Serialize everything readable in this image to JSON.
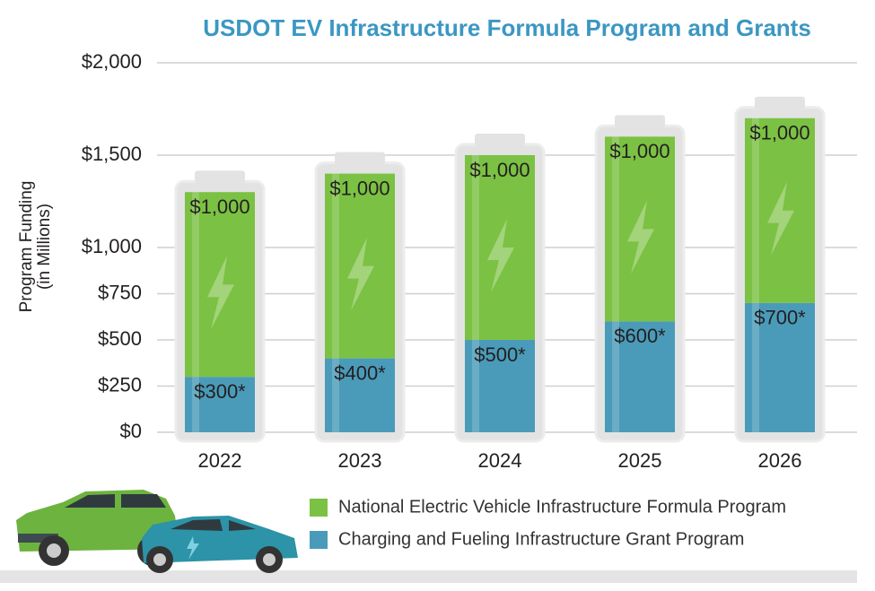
{
  "chart_data": {
    "type": "bar",
    "stacked": true,
    "title": "USDOT EV Infrastructure Formula Program and Grants",
    "ylabel": [
      "Program Funding",
      "(in Millions)"
    ],
    "categories": [
      "2022",
      "2023",
      "2024",
      "2025",
      "2026"
    ],
    "series": [
      {
        "name": "Charging and Fueling Infrastructure Grant Program",
        "color": "#4a9bb9",
        "values": [
          300,
          400,
          500,
          600,
          700
        ],
        "value_labels": [
          "$300*",
          "$400*",
          "$500*",
          "$600*",
          "$700*"
        ]
      },
      {
        "name": "National Electric Vehicle Infrastructure Formula Program",
        "color": "#7bc143",
        "values": [
          1000,
          1000,
          1000,
          1000,
          1000
        ],
        "value_labels": [
          "$1,000",
          "$1,000",
          "$1,000",
          "$1,000",
          "$1,000"
        ]
      }
    ],
    "legend_order": [
      1,
      0
    ],
    "ylim": [
      0,
      2000
    ],
    "yticks": [
      {
        "value": 0,
        "label": "$0"
      },
      {
        "value": 250,
        "label": "$250"
      },
      {
        "value": 500,
        "label": "$500"
      },
      {
        "value": 750,
        "label": "$750"
      },
      {
        "value": 1000,
        "label": "$1,000"
      },
      {
        "value": 1500,
        "label": "$1,500"
      },
      {
        "value": 2000,
        "label": "$2,000"
      }
    ],
    "grid": true
  }
}
